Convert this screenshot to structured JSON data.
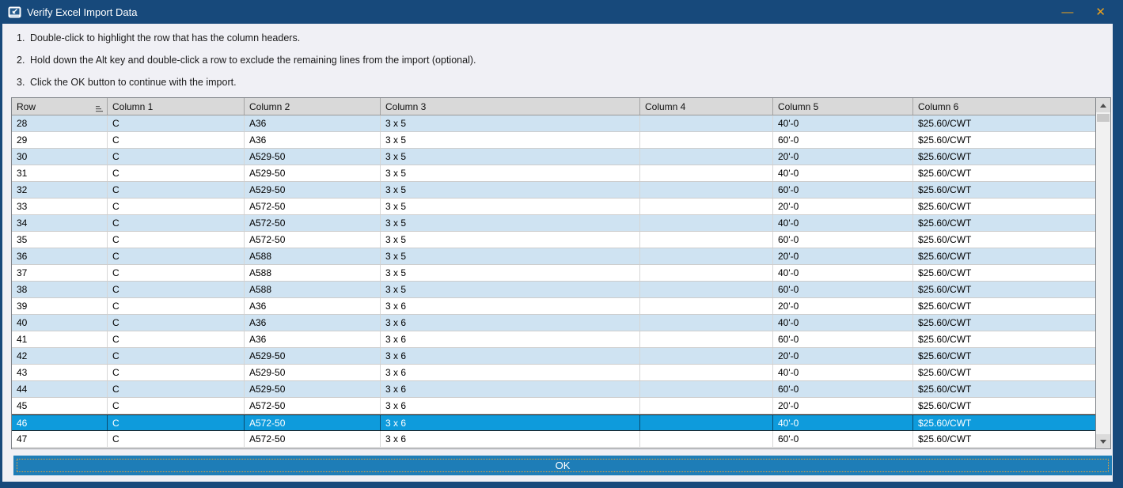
{
  "window": {
    "title": "Verify Excel Import Data",
    "minimize_glyph": "—",
    "close_glyph": "✕"
  },
  "instructions": [
    {
      "num": "1.",
      "text": "Double-click to highlight the row that has the column headers."
    },
    {
      "num": "2.",
      "text": "Hold down the Alt key and double-click a row to exclude the remaining lines from the import (optional)."
    },
    {
      "num": "3.",
      "text": "Click the OK button to continue with the import."
    }
  ],
  "table": {
    "columns": [
      "Row",
      "Column 1",
      "Column 2",
      "Column 3",
      "Column 4",
      "Column 5",
      "Column 6"
    ],
    "selected_row": "46",
    "rows": [
      {
        "row": "28",
        "c1": "C",
        "c2": "A36",
        "c3": "3 x 5",
        "c4": "",
        "c5": "40'-0",
        "c6": "$25.60/CWT",
        "selected": false
      },
      {
        "row": "29",
        "c1": "C",
        "c2": "A36",
        "c3": "3 x 5",
        "c4": "",
        "c5": "60'-0",
        "c6": "$25.60/CWT",
        "selected": false
      },
      {
        "row": "30",
        "c1": "C",
        "c2": "A529-50",
        "c3": "3 x 5",
        "c4": "",
        "c5": "20'-0",
        "c6": "$25.60/CWT",
        "selected": false
      },
      {
        "row": "31",
        "c1": "C",
        "c2": "A529-50",
        "c3": "3 x 5",
        "c4": "",
        "c5": "40'-0",
        "c6": "$25.60/CWT",
        "selected": false
      },
      {
        "row": "32",
        "c1": "C",
        "c2": "A529-50",
        "c3": "3 x 5",
        "c4": "",
        "c5": "60'-0",
        "c6": "$25.60/CWT",
        "selected": false
      },
      {
        "row": "33",
        "c1": "C",
        "c2": "A572-50",
        "c3": "3 x 5",
        "c4": "",
        "c5": "20'-0",
        "c6": "$25.60/CWT",
        "selected": false
      },
      {
        "row": "34",
        "c1": "C",
        "c2": "A572-50",
        "c3": "3 x 5",
        "c4": "",
        "c5": "40'-0",
        "c6": "$25.60/CWT",
        "selected": false
      },
      {
        "row": "35",
        "c1": "C",
        "c2": "A572-50",
        "c3": "3 x 5",
        "c4": "",
        "c5": "60'-0",
        "c6": "$25.60/CWT",
        "selected": false
      },
      {
        "row": "36",
        "c1": "C",
        "c2": "A588",
        "c3": "3 x 5",
        "c4": "",
        "c5": "20'-0",
        "c6": "$25.60/CWT",
        "selected": false
      },
      {
        "row": "37",
        "c1": "C",
        "c2": "A588",
        "c3": "3 x 5",
        "c4": "",
        "c5": "40'-0",
        "c6": "$25.60/CWT",
        "selected": false
      },
      {
        "row": "38",
        "c1": "C",
        "c2": "A588",
        "c3": "3 x 5",
        "c4": "",
        "c5": "60'-0",
        "c6": "$25.60/CWT",
        "selected": false
      },
      {
        "row": "39",
        "c1": "C",
        "c2": "A36",
        "c3": "3 x 6",
        "c4": "",
        "c5": "20'-0",
        "c6": "$25.60/CWT",
        "selected": false
      },
      {
        "row": "40",
        "c1": "C",
        "c2": "A36",
        "c3": "3 x 6",
        "c4": "",
        "c5": "40'-0",
        "c6": "$25.60/CWT",
        "selected": false
      },
      {
        "row": "41",
        "c1": "C",
        "c2": "A36",
        "c3": "3 x 6",
        "c4": "",
        "c5": "60'-0",
        "c6": "$25.60/CWT",
        "selected": false
      },
      {
        "row": "42",
        "c1": "C",
        "c2": "A529-50",
        "c3": "3 x 6",
        "c4": "",
        "c5": "20'-0",
        "c6": "$25.60/CWT",
        "selected": false
      },
      {
        "row": "43",
        "c1": "C",
        "c2": "A529-50",
        "c3": "3 x 6",
        "c4": "",
        "c5": "40'-0",
        "c6": "$25.60/CWT",
        "selected": false
      },
      {
        "row": "44",
        "c1": "C",
        "c2": "A529-50",
        "c3": "3 x 6",
        "c4": "",
        "c5": "60'-0",
        "c6": "$25.60/CWT",
        "selected": false
      },
      {
        "row": "45",
        "c1": "C",
        "c2": "A572-50",
        "c3": "3 x 6",
        "c4": "",
        "c5": "20'-0",
        "c6": "$25.60/CWT",
        "selected": false
      },
      {
        "row": "46",
        "c1": "C",
        "c2": "A572-50",
        "c3": "3 x 6",
        "c4": "",
        "c5": "40'-0",
        "c6": "$25.60/CWT",
        "selected": true
      },
      {
        "row": "47",
        "c1": "C",
        "c2": "A572-50",
        "c3": "3 x 6",
        "c4": "",
        "c5": "60'-0",
        "c6": "$25.60/CWT",
        "selected": false
      }
    ]
  },
  "ok_button": {
    "label": "OK"
  },
  "icons": {
    "titlebar_app": "excel-import-icon",
    "row_header": "sort-icon"
  },
  "colors": {
    "titlebar": "#17497B",
    "window_border": "#17497B",
    "control_gold": "#EDA21E",
    "content_bg": "#F0F0F5",
    "header_bg": "#D9D9D9",
    "row_alt": "#CFE3F2",
    "row_selected": "#0E9BDC",
    "ok_button": "#1E7DB7",
    "focus_ring": "#E8A33D"
  }
}
